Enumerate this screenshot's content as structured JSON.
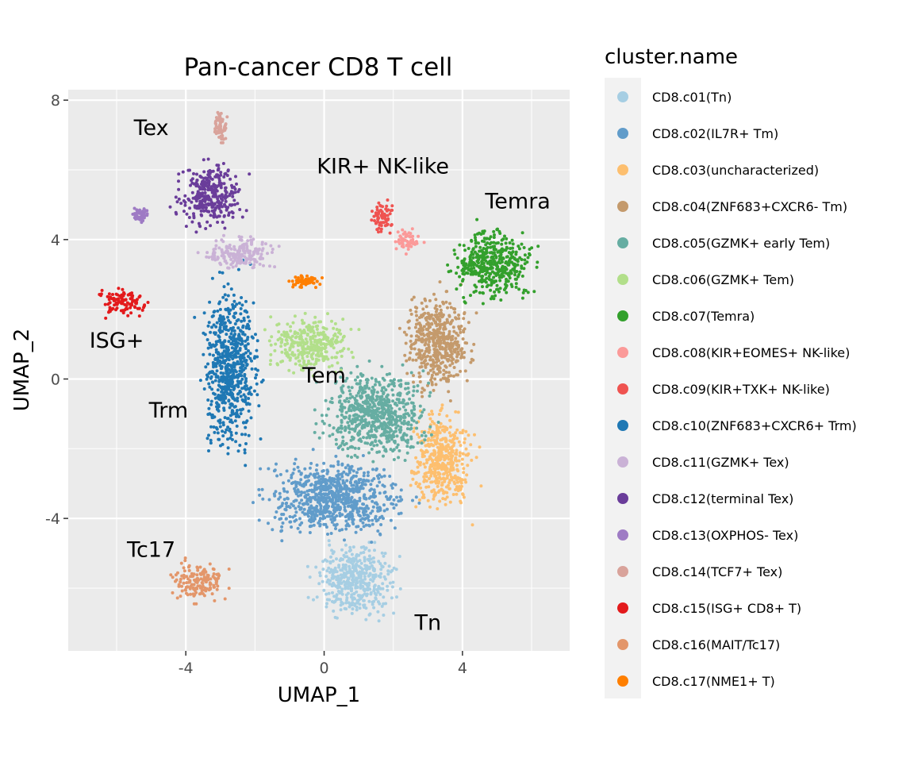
{
  "chart_data": {
    "type": "scatter",
    "title": "Pan-cancer CD8 T cell",
    "xlabel": "UMAP_1",
    "ylabel": "UMAP_2",
    "xlim": [
      -7.4,
      7.1
    ],
    "ylim": [
      -7.8,
      8.3
    ],
    "xticks": [
      -4,
      0,
      4
    ],
    "yticks": [
      -4,
      0,
      4,
      8
    ],
    "grid": true,
    "legend": {
      "title": "cluster.name",
      "placement": "right"
    },
    "series": [
      {
        "name": "CD8.c01(Tn)",
        "color": "#A6CEE3",
        "cx": 0.9,
        "cy": -5.8,
        "sx": 0.75,
        "sy": 0.65
      },
      {
        "name": "CD8.c02(IL7R+ Tm)",
        "color": "#619CCA",
        "cx": 0.3,
        "cy": -3.4,
        "sx": 1.25,
        "sy": 0.7
      },
      {
        "name": "CD8.c03(uncharacterized)",
        "color": "#FDBF6F",
        "cx": 3.4,
        "cy": -2.3,
        "sx": 0.55,
        "sy": 0.9
      },
      {
        "name": "CD8.c04(ZNF683+CXCR6- Tm)",
        "color": "#C49A6C",
        "cx": 3.3,
        "cy": 1.1,
        "sx": 0.6,
        "sy": 0.9
      },
      {
        "name": "CD8.c05(GZMK+ early Tem)",
        "color": "#66ADA2",
        "cx": 1.5,
        "cy": -1.0,
        "sx": 0.95,
        "sy": 0.8
      },
      {
        "name": "CD8.c06(GZMK+ Tem)",
        "color": "#B2DF8A",
        "cx": -0.4,
        "cy": 1.0,
        "sx": 0.75,
        "sy": 0.5
      },
      {
        "name": "CD8.c07(Temra)",
        "color": "#33A02C",
        "cx": 4.9,
        "cy": 3.3,
        "sx": 0.75,
        "sy": 0.65
      },
      {
        "name": "CD8.c08(KIR+EOMES+ NK-like)",
        "color": "#FB9A99",
        "cx": 2.4,
        "cy": 4.0,
        "sx": 0.25,
        "sy": 0.22
      },
      {
        "name": "CD8.c09(KIR+TXK+ NK-like)",
        "color": "#EF5350",
        "cx": 1.7,
        "cy": 4.6,
        "sx": 0.22,
        "sy": 0.35
      },
      {
        "name": "CD8.c10(ZNF683+CXCR6+ Trm)",
        "color": "#1F78B4",
        "cx": -2.7,
        "cy": 0.3,
        "sx": 0.5,
        "sy": 1.5
      },
      {
        "name": "CD8.c11(GZMK+ Tex)",
        "color": "#CAB2D6",
        "cx": -2.4,
        "cy": 3.6,
        "sx": 0.7,
        "sy": 0.3
      },
      {
        "name": "CD8.c12(terminal Tex)",
        "color": "#6A3D9A",
        "cx": -3.3,
        "cy": 5.3,
        "sx": 0.6,
        "sy": 0.6
      },
      {
        "name": "CD8.c13(OXPHOS- Tex)",
        "color": "#9E7BC4",
        "cx": -5.3,
        "cy": 4.7,
        "sx": 0.15,
        "sy": 0.12
      },
      {
        "name": "CD8.c14(TCF7+ Tex)",
        "color": "#D9A39B",
        "cx": -3.0,
        "cy": 7.2,
        "sx": 0.12,
        "sy": 0.3
      },
      {
        "name": "CD8.c15(ISG+ CD8+ T)",
        "color": "#E31A1C",
        "cx": -5.8,
        "cy": 2.2,
        "sx": 0.5,
        "sy": 0.25
      },
      {
        "name": "CD8.c16(MAIT/Tc17)",
        "color": "#E3966A",
        "cx": -3.6,
        "cy": -5.8,
        "sx": 0.5,
        "sy": 0.35
      },
      {
        "name": "CD8.c17(NME1+ T)",
        "color": "#FF7F00",
        "cx": -0.5,
        "cy": 2.8,
        "sx": 0.3,
        "sy": 0.15
      }
    ],
    "annotations": [
      {
        "text": "Tex",
        "x": -5.0,
        "y": 7.0
      },
      {
        "text": "KIR+ NK-like",
        "x": 1.7,
        "y": 5.9
      },
      {
        "text": "Temra",
        "x": 5.6,
        "y": 4.9
      },
      {
        "text": "ISG+",
        "x": -6.0,
        "y": 0.9
      },
      {
        "text": "Tem",
        "x": 0.0,
        "y": -0.1
      },
      {
        "text": "Trm",
        "x": -4.5,
        "y": -1.1
      },
      {
        "text": "Tc17",
        "x": -5.0,
        "y": -5.1
      },
      {
        "text": "Tn",
        "x": 3.0,
        "y": -7.2
      }
    ]
  }
}
